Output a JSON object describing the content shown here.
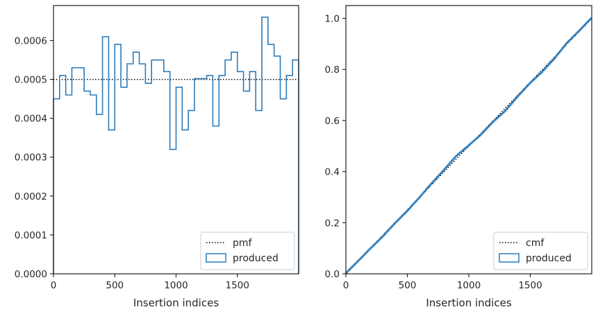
{
  "chart_data": [
    {
      "type": "step",
      "xlabel": "Insertion indices",
      "ylabel": "",
      "xlim": [
        0,
        2000
      ],
      "ylim": [
        0,
        0.00069
      ],
      "xticks": [
        0,
        500,
        1000,
        1500
      ],
      "yticks": [
        0.0,
        0.0001,
        0.0002,
        0.0003,
        0.0004,
        0.0005,
        0.0006
      ],
      "ytick_labels": [
        "0.0000",
        "0.0001",
        "0.0002",
        "0.0003",
        "0.0004",
        "0.0005",
        "0.0006"
      ],
      "legend": {
        "position": "lower-right",
        "entries": [
          "pmf",
          "produced"
        ]
      },
      "series": [
        {
          "name": "pmf",
          "style": "dotted",
          "color": "#000000",
          "x": [
            0,
            2000
          ],
          "values": [
            0.0005,
            0.0005
          ]
        },
        {
          "name": "produced",
          "style": "step-histogram",
          "color": "#2b7bba",
          "bin_width": 50,
          "values": [
            0.00045,
            0.00051,
            0.00046,
            0.00053,
            0.00053,
            0.00047,
            0.00046,
            0.00041,
            0.00061,
            0.00037,
            0.00059,
            0.00048,
            0.00054,
            0.00057,
            0.00054,
            0.00049,
            0.00055,
            0.00055,
            0.00052,
            0.00032,
            0.00048,
            0.00037,
            0.00042,
            0.000502,
            0.000502,
            0.00051,
            0.00038,
            0.00051,
            0.00055,
            0.00057,
            0.00052,
            0.00047,
            0.00052,
            0.00042,
            0.00066,
            0.00059,
            0.00056,
            0.00045,
            0.00051,
            0.00055
          ]
        }
      ]
    },
    {
      "type": "line",
      "xlabel": "Insertion indices",
      "ylabel": "",
      "xlim": [
        0,
        2000
      ],
      "ylim": [
        0,
        1.05
      ],
      "xticks": [
        0,
        500,
        1000,
        1500
      ],
      "yticks": [
        0.0,
        0.2,
        0.4,
        0.6,
        0.8,
        1.0
      ],
      "ytick_labels": [
        "0.0",
        "0.2",
        "0.4",
        "0.6",
        "0.8",
        "1.0"
      ],
      "legend": {
        "position": "lower-right",
        "entries": [
          "cmf",
          "produced"
        ]
      },
      "series": [
        {
          "name": "cmf",
          "style": "dotted",
          "color": "#000000",
          "x": [
            0,
            2000
          ],
          "values": [
            0.0,
            1.0
          ]
        },
        {
          "name": "produced",
          "style": "step",
          "color": "#2b7bba",
          "x": [
            0,
            100,
            200,
            300,
            400,
            500,
            600,
            700,
            800,
            900,
            1000,
            1100,
            1200,
            1300,
            1400,
            1500,
            1600,
            1700,
            1800,
            1900,
            2000
          ],
          "values": [
            0.0,
            0.048,
            0.097,
            0.144,
            0.196,
            0.244,
            0.297,
            0.353,
            0.405,
            0.46,
            0.501,
            0.543,
            0.594,
            0.637,
            0.693,
            0.745,
            0.79,
            0.842,
            0.902,
            0.95,
            1.0
          ]
        }
      ]
    }
  ]
}
